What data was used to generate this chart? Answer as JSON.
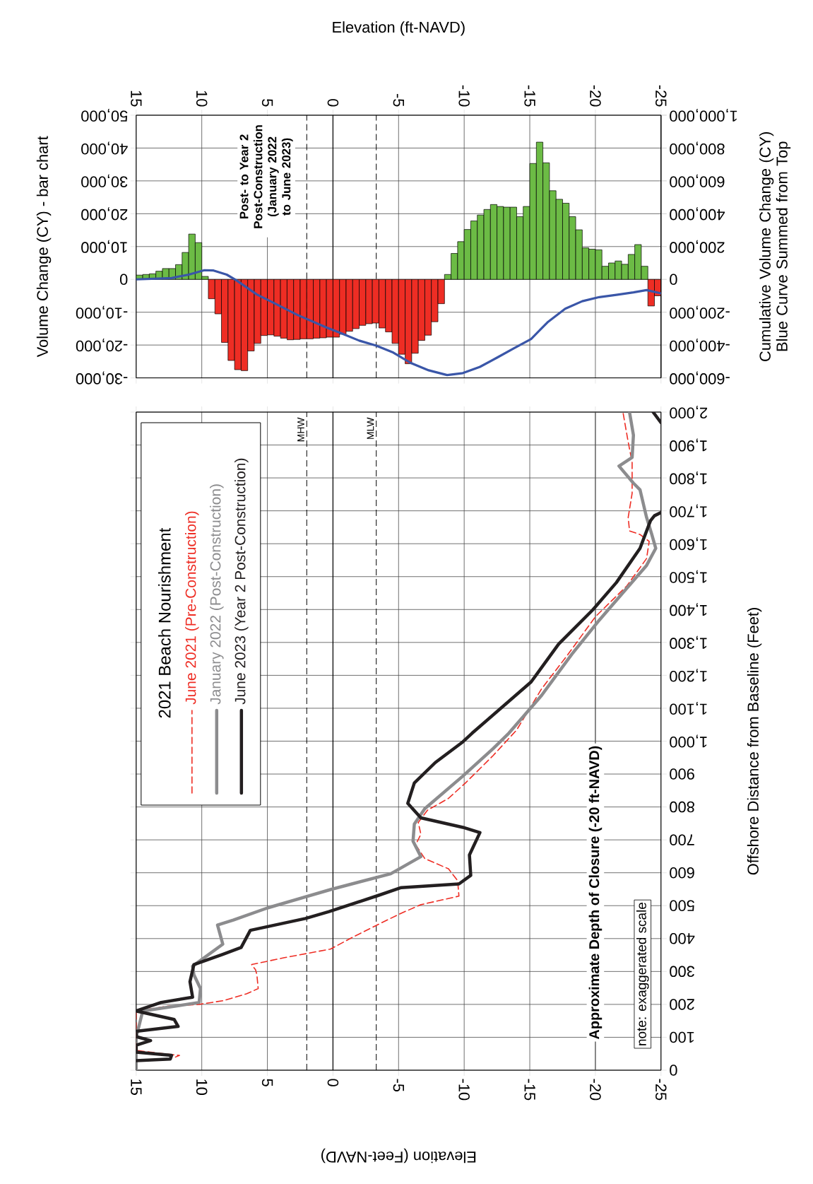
{
  "chart_data": [
    {
      "type": "bar",
      "xlabel": "Elevation (ft-NAVD)",
      "ylabel": "Volume Change (CY) - bar chart",
      "y2label": "Cumulative Volume Change (CY) Blue Curve Summed from Top",
      "annotations": [
        "Post- to Year 2 Post-Construction (January 2022 to June 2023)"
      ],
      "xlim": [
        15,
        -25
      ],
      "xticks": [
        15,
        10,
        5,
        0,
        -5,
        -10,
        -15,
        -20,
        -25
      ],
      "ylim": [
        -30000,
        50000
      ],
      "yticks": [
        {
          "value": -30000,
          "label": "-30,000"
        },
        {
          "value": -20000,
          "label": "-20,000"
        },
        {
          "value": -10000,
          "label": "-10,000"
        },
        0,
        {
          "value": 10000,
          "label": "10,000"
        },
        {
          "value": 20000,
          "label": "20,000"
        },
        {
          "value": 30000,
          "label": "30,000"
        },
        {
          "value": 40000,
          "label": "40,000"
        },
        {
          "value": 50000,
          "label": "50,000"
        }
      ],
      "y2lim": [
        -600000,
        1000000
      ],
      "y2ticks": [
        {
          "value": -600000,
          "label": "-600,000"
        },
        {
          "value": -400000,
          "label": "-400,000"
        },
        {
          "value": -200000,
          "label": "-200,000"
        },
        0,
        {
          "value": 200000,
          "label": "200,000"
        },
        {
          "value": 400000,
          "label": "400,000"
        },
        {
          "value": 600000,
          "label": "600,000"
        },
        {
          "value": 800000,
          "label": "800,000"
        },
        {
          "value": 1000000,
          "label": "1,000,000"
        }
      ],
      "grid": true,
      "ref_lines": [
        {
          "axis": "x",
          "value": 2.0,
          "line_style": "dashed"
        },
        {
          "axis": "x",
          "value": -3.3,
          "line_style": "dashed"
        },
        {
          "axis": "x",
          "value": 0,
          "color": "#000000"
        }
      ],
      "series": [
        {
          "type": "bar",
          "x": [
            14.75,
            14.25,
            13.75,
            13.25,
            12.75,
            12.25,
            11.75,
            11.25,
            10.75,
            10.25,
            9.75,
            9.25,
            8.75,
            8.25,
            7.75,
            7.25,
            6.75,
            6.25,
            5.75,
            5.25,
            4.75,
            4.25,
            3.75,
            3.25,
            2.75,
            2.25,
            1.75,
            1.25,
            0.75,
            0.25,
            -0.25,
            -0.75,
            -1.25,
            -1.75,
            -2.25,
            -2.75,
            -3.25,
            -3.75,
            -4.25,
            -4.75,
            -5.25,
            -5.75,
            -6.25,
            -6.75,
            -7.25,
            -7.75,
            -8.25,
            -8.75,
            -9.25,
            -9.75,
            -10.25,
            -10.75,
            -11.25,
            -11.75,
            -12.25,
            -12.75,
            -13.25,
            -13.75,
            -14.25,
            -14.75,
            -15.25,
            -15.75,
            -16.25,
            -16.75,
            -17.25,
            -17.75,
            -18.25,
            -18.75,
            -19.25,
            -19.75,
            -20.25,
            -20.75,
            -21.25,
            -21.75,
            -22.25,
            -22.75,
            -23.25,
            -23.75,
            -24.25,
            -24.75
          ],
          "values": [
            1300,
            1500,
            1700,
            2500,
            3300,
            3300,
            4500,
            8200,
            13800,
            11200,
            900,
            -5900,
            -10500,
            -19200,
            -24700,
            -27500,
            -27800,
            -21800,
            -19500,
            -17100,
            -16900,
            -17300,
            -17900,
            -18400,
            -18300,
            -18100,
            -18100,
            -17900,
            -17800,
            -17600,
            -17600,
            -16700,
            -15800,
            -15000,
            -14000,
            -13500,
            -13300,
            -14800,
            -16000,
            -19500,
            -22800,
            -25700,
            -22500,
            -18600,
            -17000,
            -12900,
            -7400,
            1500,
            7900,
            11500,
            15200,
            17800,
            19600,
            21300,
            22800,
            22200,
            22000,
            22000,
            19100,
            22200,
            35300,
            41800,
            35500,
            27000,
            24400,
            23200,
            19100,
            15100,
            9600,
            9200,
            9000,
            4000,
            5000,
            5600,
            4600,
            7600,
            10600,
            4000,
            -8100,
            -5000
          ],
          "colors": [
            "#6cbb45",
            "#6cbb45",
            "#6cbb45",
            "#6cbb45",
            "#6cbb45",
            "#6cbb45",
            "#6cbb45",
            "#6cbb45",
            "#6cbb45",
            "#6cbb45",
            "#6cbb45",
            "#ee2d24",
            "#ee2d24",
            "#ee2d24",
            "#ee2d24",
            "#ee2d24",
            "#ee2d24",
            "#ee2d24",
            "#ee2d24",
            "#ee2d24",
            "#ee2d24",
            "#ee2d24",
            "#ee2d24",
            "#ee2d24",
            "#ee2d24",
            "#ee2d24",
            "#ee2d24",
            "#ee2d24",
            "#ee2d24",
            "#ee2d24",
            "#ee2d24",
            "#ee2d24",
            "#ee2d24",
            "#ee2d24",
            "#ee2d24",
            "#ee2d24",
            "#ee2d24",
            "#ee2d24",
            "#ee2d24",
            "#ee2d24",
            "#ee2d24",
            "#ee2d24",
            "#ee2d24",
            "#ee2d24",
            "#ee2d24",
            "#ee2d24",
            "#ee2d24",
            "#6cbb45",
            "#6cbb45",
            "#6cbb45",
            "#6cbb45",
            "#6cbb45",
            "#6cbb45",
            "#6cbb45",
            "#6cbb45",
            "#6cbb45",
            "#6cbb45",
            "#6cbb45",
            "#6cbb45",
            "#6cbb45",
            "#6cbb45",
            "#6cbb45",
            "#6cbb45",
            "#6cbb45",
            "#6cbb45",
            "#6cbb45",
            "#6cbb45",
            "#6cbb45",
            "#6cbb45",
            "#6cbb45",
            "#6cbb45",
            "#6cbb45",
            "#6cbb45",
            "#6cbb45",
            "#6cbb45",
            "#6cbb45",
            "#6cbb45",
            "#6cbb45",
            "#ee2d24",
            "#ee2d24"
          ]
        },
        {
          "type": "line",
          "axis": "y2",
          "color": "#3a56a8",
          "x": [
            15,
            12.3,
            11,
            9.8,
            9.1,
            8.1,
            7.4,
            5.8,
            4.5,
            2.7,
            0.6,
            -0.7,
            -2,
            -3.3,
            -4.6,
            -5.9,
            -7.3,
            -8.7,
            -9.9,
            -11.2,
            -12.5,
            -13.8,
            -15.1,
            -16.4,
            -17.7,
            -19,
            -20.3,
            -21.6,
            -22.9,
            -23.9,
            -25
          ],
          "values": [
            0,
            8000,
            29000,
            56000,
            54000,
            29000,
            -4000,
            -92000,
            -144000,
            -217000,
            -290000,
            -331000,
            -373000,
            -404000,
            -446000,
            -508000,
            -554000,
            -583000,
            -571000,
            -533000,
            -477000,
            -419000,
            -363000,
            -258000,
            -179000,
            -133000,
            -108000,
            -94000,
            -79000,
            -65000,
            -85000
          ]
        }
      ]
    },
    {
      "type": "line",
      "orientation": "horizontal",
      "xlabel": "Elevation (Feet-NAVD)",
      "ylabel": "Offshore Distance from Baseline (Feet)",
      "legend_title": "2021 Beach Nourishment",
      "legend": "top left",
      "annotations": [
        "note: exaggerated scale"
      ],
      "xlim": [
        15,
        -25
      ],
      "xticks": [
        15,
        10,
        5,
        0,
        -5,
        -10,
        -15,
        -20,
        -25
      ],
      "ylim": [
        0,
        2000
      ],
      "yticks": [
        0,
        100,
        200,
        300,
        400,
        500,
        600,
        700,
        800,
        900,
        {
          "value": 1000,
          "label": "1,000"
        },
        {
          "value": 1100,
          "label": "1,100"
        },
        {
          "value": 1200,
          "label": "1,200"
        },
        {
          "value": 1300,
          "label": "1,300"
        },
        {
          "value": 1400,
          "label": "1,400"
        },
        {
          "value": 1500,
          "label": "1,500"
        },
        {
          "value": 1600,
          "label": "1,600"
        },
        {
          "value": 1700,
          "label": "1,700"
        },
        {
          "value": 1800,
          "label": "1,800"
        },
        {
          "value": 1900,
          "label": "1,900"
        },
        {
          "value": 2000,
          "label": "2,000"
        }
      ],
      "grid": true,
      "ref_lines": [
        {
          "axis": "x",
          "value": 2.0,
          "label": "MHW",
          "line_style": "dashed"
        },
        {
          "axis": "x",
          "value": -3.3,
          "label": "MLW",
          "line_style": "dashed"
        },
        {
          "axis": "x",
          "value": 0,
          "color": "#000000"
        },
        {
          "axis": "x",
          "value": -20,
          "label": "Approximate Depth of Closure (-20 ft-NAVD)",
          "color": "#555555"
        }
      ],
      "series": [
        {
          "name": "June 2021 (Pre-Construction)",
          "color": "#ee2d24",
          "line_style": "dashed",
          "x": [
            40,
            45,
            55,
            60,
            180,
            195,
            200,
            211,
            232,
            248,
            290,
            305,
            321,
            342,
            368,
            404,
            446,
            477,
            503,
            529,
            576,
            612,
            643,
            685,
            717,
            753,
            790,
            826,
            873,
            956,
            1034,
            1159,
            1263,
            1378,
            1472,
            1555,
            1607,
            1628,
            1639,
            1680,
            1753,
            1847,
            1909,
            2000
          ],
          "values": [
            12.0,
            11.7,
            14.0,
            15,
            15,
            12.5,
            10.2,
            8.4,
            6.6,
            5.7,
            5.8,
            5.9,
            6.2,
            3.7,
            0.2,
            -1.5,
            -3.6,
            -5.2,
            -6.7,
            -9.6,
            -9.5,
            -8.8,
            -7.0,
            -6.3,
            -6.7,
            -6.5,
            -7.2,
            -8.8,
            -10.1,
            -12.2,
            -14.0,
            -15.9,
            -17.9,
            -20.0,
            -22.4,
            -23.9,
            -24.1,
            -23.4,
            -22.6,
            -22.5,
            -22.8,
            -22.8,
            -22.5,
            -22.1
          ]
        },
        {
          "name": "January 2022 (Post-Construction)",
          "color": "#8c8c8e",
          "line_style": "solid",
          "x": [
            0,
            100,
            180,
            191,
            206,
            248,
            290,
            316,
            383,
            441,
            456,
            493,
            550,
            597,
            649,
            696,
            748,
            795,
            894,
            977,
            1024,
            1139,
            1264,
            1368,
            1451,
            1534,
            1586,
            1628,
            1680,
            1764,
            1784,
            1836,
            1862,
            1930,
            2000
          ],
          "values": [
            15,
            15,
            14.5,
            12.6,
            10.2,
            10.1,
            10.6,
            10.7,
            8.4,
            8.8,
            7.6,
            5.0,
            0.1,
            -4.4,
            -6.7,
            -6.1,
            -6.2,
            -7.0,
            -9.9,
            -12.2,
            -13.4,
            -15.9,
            -18.2,
            -20.3,
            -22.1,
            -23.9,
            -24.6,
            -24.3,
            -23.9,
            -23.4,
            -22.9,
            -21.8,
            -22.8,
            -22.9,
            -22.6
          ]
        },
        {
          "name": "June 2023 (Year 2 Post-Construction)",
          "color": "#231f20",
          "line_style": "solid",
          "x": [
            29,
            34,
            45,
            55,
            76,
            90,
            102,
            118,
            133,
            154,
            180,
            206,
            222,
            269,
            321,
            352,
            373,
            425,
            461,
            482,
            529,
            555,
            566,
            592,
            654,
            722,
            738,
            767,
            811,
            873,
            935,
            998,
            1024,
            1180,
            1295,
            1399,
            1482,
            1586,
            1670,
            1685,
            1695,
            1800,
            1968,
            2000
          ],
          "values": [
            15,
            12.4,
            12.3,
            15,
            15,
            13.9,
            15,
            15,
            11.8,
            12.1,
            15,
            13.1,
            10.7,
            10.9,
            10.6,
            8.4,
            7.0,
            6.3,
            2.1,
            0.3,
            -3.3,
            -5.2,
            -9.6,
            -10.5,
            -10.4,
            -11.2,
            -9.9,
            -6.7,
            -5.7,
            -6.2,
            -7.8,
            -9.9,
            -10.6,
            -15.1,
            -17.2,
            -19.8,
            -21.6,
            -23.4,
            -24.2,
            -24.5,
            -25,
            null,
            -25,
            -24.4
          ]
        }
      ]
    }
  ]
}
